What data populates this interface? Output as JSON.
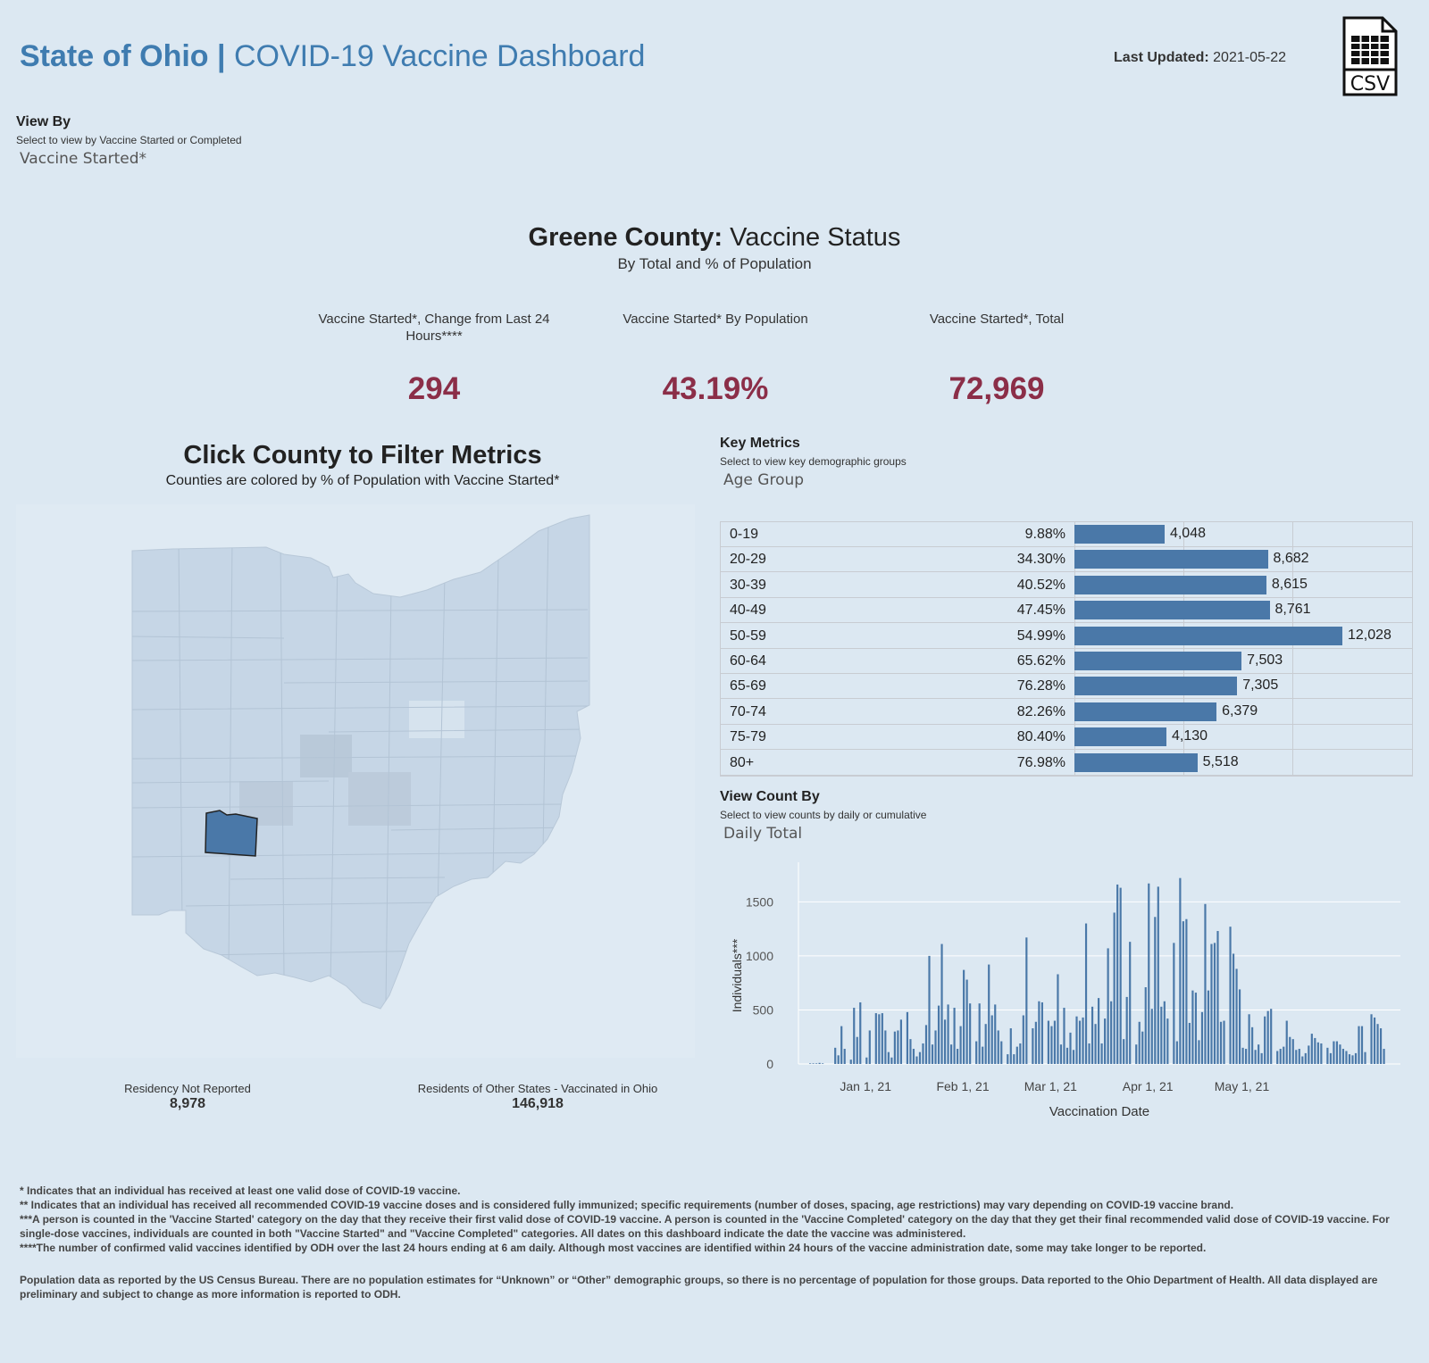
{
  "header": {
    "title_bold": "State of Ohio |",
    "title_rest": "COVID-19 Vaccine Dashboard",
    "last_updated_label": "Last Updated:",
    "last_updated_value": "2021-05-22",
    "csv_label": "CSV"
  },
  "view_by": {
    "label": "View By",
    "help": "Select to view by Vaccine Started or Completed",
    "value": "Vaccine Started*"
  },
  "status": {
    "county": "Greene County:",
    "title_rest": "Vaccine Status",
    "subtitle": "By Total and % of Population"
  },
  "kpis": [
    {
      "label": "Vaccine Started*, Change from Last 24 Hours****",
      "value": "294"
    },
    {
      "label": "Vaccine Started* By Population",
      "value": "43.19%"
    },
    {
      "label": "Vaccine Started*, Total",
      "value": "72,969"
    }
  ],
  "map": {
    "title": "Click County to Filter Metrics",
    "subtitle": "Counties are colored by % of Population with Vaccine Started*",
    "not_reported_label": "Residency Not Reported",
    "not_reported_value": "8,978",
    "other_states_label": "Residents of Other States - Vaccinated in Ohio",
    "other_states_value": "146,918"
  },
  "key_metrics": {
    "label": "Key Metrics",
    "help": "Select to view key demographic groups",
    "value": "Age Group",
    "rows": [
      {
        "group": "0-19",
        "pct": "9.88%",
        "count": 4048,
        "count_label": "4,048"
      },
      {
        "group": "20-29",
        "pct": "34.30%",
        "count": 8682,
        "count_label": "8,682"
      },
      {
        "group": "30-39",
        "pct": "40.52%",
        "count": 8615,
        "count_label": "8,615"
      },
      {
        "group": "40-49",
        "pct": "47.45%",
        "count": 8761,
        "count_label": "8,761"
      },
      {
        "group": "50-59",
        "pct": "54.99%",
        "count": 12028,
        "count_label": "12,028"
      },
      {
        "group": "60-64",
        "pct": "65.62%",
        "count": 7503,
        "count_label": "7,503"
      },
      {
        "group": "65-69",
        "pct": "76.28%",
        "count": 7305,
        "count_label": "7,305"
      },
      {
        "group": "70-74",
        "pct": "82.26%",
        "count": 6379,
        "count_label": "6,379"
      },
      {
        "group": "75-79",
        "pct": "80.40%",
        "count": 4130,
        "count_label": "4,130"
      },
      {
        "group": "80+",
        "pct": "76.98%",
        "count": 5518,
        "count_label": "5,518"
      }
    ]
  },
  "view_count": {
    "label": "View Count By",
    "help": "Select to view counts by daily or cumulative",
    "value": "Daily Total"
  },
  "chart_data": {
    "type": "bar",
    "title": "",
    "xlabel": "Vaccination Date",
    "ylabel": "Individuals***",
    "ylim": [
      0,
      1800
    ],
    "yticks": [
      0,
      500,
      1000,
      1500
    ],
    "xticks": [
      "Jan 1, 21",
      "Feb 1, 21",
      "Mar 1, 21",
      "Apr 1, 21",
      "May 1, 21"
    ],
    "start_date": "2020-12-14",
    "values": [
      5,
      5,
      5,
      10,
      5,
      0,
      0,
      0,
      150,
      80,
      350,
      140,
      0,
      40,
      520,
      250,
      570,
      0,
      60,
      310,
      0,
      470,
      460,
      470,
      310,
      110,
      60,
      300,
      310,
      410,
      0,
      480,
      230,
      140,
      70,
      110,
      190,
      360,
      1000,
      180,
      310,
      540,
      1110,
      410,
      550,
      180,
      520,
      140,
      350,
      870,
      780,
      560,
      0,
      210,
      560,
      160,
      370,
      920,
      450,
      550,
      310,
      210,
      0,
      90,
      330,
      90,
      160,
      190,
      450,
      1170,
      0,
      330,
      390,
      580,
      570,
      0,
      400,
      350,
      400,
      830,
      180,
      520,
      150,
      290,
      130,
      440,
      400,
      430,
      1300,
      190,
      530,
      370,
      610,
      190,
      420,
      1070,
      580,
      1400,
      1660,
      1630,
      230,
      620,
      1130,
      0,
      180,
      390,
      300,
      710,
      1670,
      510,
      1360,
      1640,
      530,
      580,
      420,
      0,
      1120,
      210,
      1720,
      1320,
      1340,
      380,
      680,
      660,
      220,
      480,
      1480,
      680,
      1110,
      1120,
      1230,
      390,
      400,
      0,
      1270,
      1020,
      880,
      690,
      150,
      140,
      460,
      340,
      130,
      180,
      100,
      440,
      490,
      510,
      0,
      120,
      140,
      160,
      400,
      250,
      230,
      130,
      140,
      70,
      100,
      170,
      280,
      240,
      200,
      190,
      0,
      150,
      100,
      210,
      210,
      180,
      140,
      120,
      90,
      80,
      100,
      350,
      350,
      110,
      0,
      460,
      430,
      370,
      330,
      140
    ]
  },
  "footnotes": {
    "f1": "* Indicates that an individual has received at least one valid dose of COVID-19 vaccine.",
    "f2": "** Indicates that an individual has received all recommended COVID-19 vaccine doses and is considered fully immunized; specific requirements (number of doses, spacing, age restrictions) may vary depending on COVID-19 vaccine brand.",
    "f3": "***A person is counted in the 'Vaccine Started' category on the day that they receive their first valid dose of COVID-19 vaccine.  A person is counted in the 'Vaccine Completed' category on the day that they get their final recommended valid dose of COVID-19 vaccine. For single-dose vaccines, individuals are counted in both \"Vaccine Started\" and \"Vaccine Completed\" categories. All dates on this dashboard indicate the date the vaccine was administered.",
    "f4": "****The number of confirmed valid vaccines identified by ODH over the last 24 hours ending at 6 am daily. Although most vaccines are identified within 24 hours of the vaccine administration date, some may take longer to be reported.",
    "f5": "Population data as reported by the US Census Bureau. There are no population estimates for “Unknown” or “Other” demographic groups, so there is no percentage of population for those groups.  Data reported to the Ohio Department of Health.  All data displayed are preliminary and subject to change as more information is reported to ODH."
  },
  "colors": {
    "accent": "#3f7cb0",
    "kpi": "#8b2e48",
    "bar": "#4a78a8",
    "county_fill": "#c6d6e6",
    "selected_county": "#4a78a8"
  }
}
